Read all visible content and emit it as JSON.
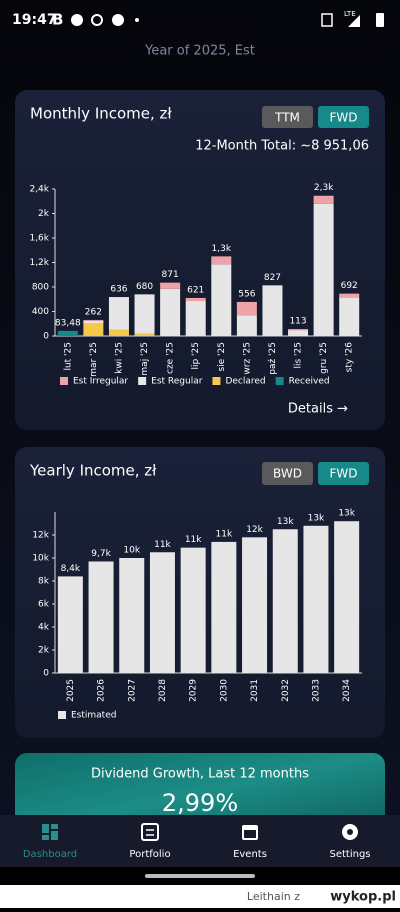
{
  "status_bar": {
    "time": "19:47",
    "icon_letter": "B",
    "network": "LTE"
  },
  "header": {
    "subtitle": "Year of 2025, Est"
  },
  "monthly": {
    "toggle": [
      "TTM",
      "FWD"
    ],
    "total": "12-Month Total: ~8 951,06",
    "details": "Details →",
    "chart_data": {
      "type": "stacked-bar",
      "title": "Monthly Income, zł",
      "categories": [
        "lut '25",
        "mar '25",
        "kwi '25",
        "maj '25",
        "cze '25",
        "lip '25",
        "sie '25",
        "wrz '25",
        "paź '25",
        "lis '25",
        "gru '25",
        "sty '26"
      ],
      "series": [
        {
          "name": "Est Irregular",
          "color": "#f0a3a6",
          "values": [
            0,
            12,
            0,
            0,
            100,
            50,
            130,
            216,
            0,
            23,
            130,
            60
          ]
        },
        {
          "name": "Est Regular",
          "color": "#e6e6e6",
          "values": [
            0,
            50,
            536,
            640,
            771,
            571,
            1170,
            340,
            827,
            90,
            2160,
            632
          ]
        },
        {
          "name": "Declared",
          "color": "#f4c94a",
          "values": [
            0,
            200,
            100,
            40,
            0,
            0,
            0,
            0,
            0,
            0,
            0,
            0
          ]
        },
        {
          "name": "Received",
          "color": "#168a88",
          "values": [
            83.48,
            0,
            0,
            0,
            0,
            0,
            0,
            0,
            0,
            0,
            0,
            0
          ]
        }
      ],
      "totals": [
        83.48,
        262,
        636,
        680,
        871,
        621,
        1300,
        556,
        827,
        113,
        2290,
        692
      ],
      "total_labels": [
        "83,48",
        "262",
        "636",
        "680",
        "871",
        "621",
        "1,3k",
        "556",
        "827",
        "113",
        "2,3k",
        "692"
      ],
      "ylim": [
        0,
        2400
      ],
      "yticks": [
        0,
        400,
        800,
        {
          "value": 1200,
          "label": "1,2k"
        },
        {
          "value": 1600,
          "label": "1,6k"
        },
        {
          "value": 2000,
          "label": "2k"
        },
        {
          "value": 2400,
          "label": "2,4k"
        }
      ],
      "grid": false
    }
  },
  "yearly": {
    "toggle": [
      "BWD",
      "FWD"
    ],
    "chart_data": {
      "type": "bar",
      "title": "Yearly Income, zł",
      "categories": [
        "2025",
        "2026",
        "2027",
        "2028",
        "2029",
        "2030",
        "2031",
        "2032",
        "2033",
        "2034"
      ],
      "series": [
        {
          "name": "Estimated",
          "color": "#e6e6e6",
          "values": [
            8400,
            9700,
            10000,
            10500,
            10900,
            11400,
            11800,
            12500,
            12800,
            13200
          ]
        }
      ],
      "value_labels": [
        "8,4k",
        "9,7k",
        "10k",
        "11k",
        "11k",
        "11k",
        "12k",
        "13k",
        "13k",
        "13k"
      ],
      "ylim": [
        0,
        14000
      ],
      "yticks": [
        0,
        {
          "value": 2000,
          "label": "2k"
        },
        {
          "value": 4000,
          "label": "4k"
        },
        {
          "value": 6000,
          "label": "6k"
        },
        {
          "value": 8000,
          "label": "8k"
        },
        {
          "value": 10000,
          "label": "10k"
        },
        {
          "value": 12000,
          "label": "12k"
        }
      ],
      "grid": false
    }
  },
  "growth": {
    "title": "Dividend Growth, Last 12 months",
    "value": 2.99,
    "value_label": "2,99%"
  },
  "nav": [
    "Dashboard",
    "Portfolio",
    "Events",
    "Settings"
  ],
  "watermark": {
    "user": "Leithain z",
    "site": "wykop.pl"
  }
}
